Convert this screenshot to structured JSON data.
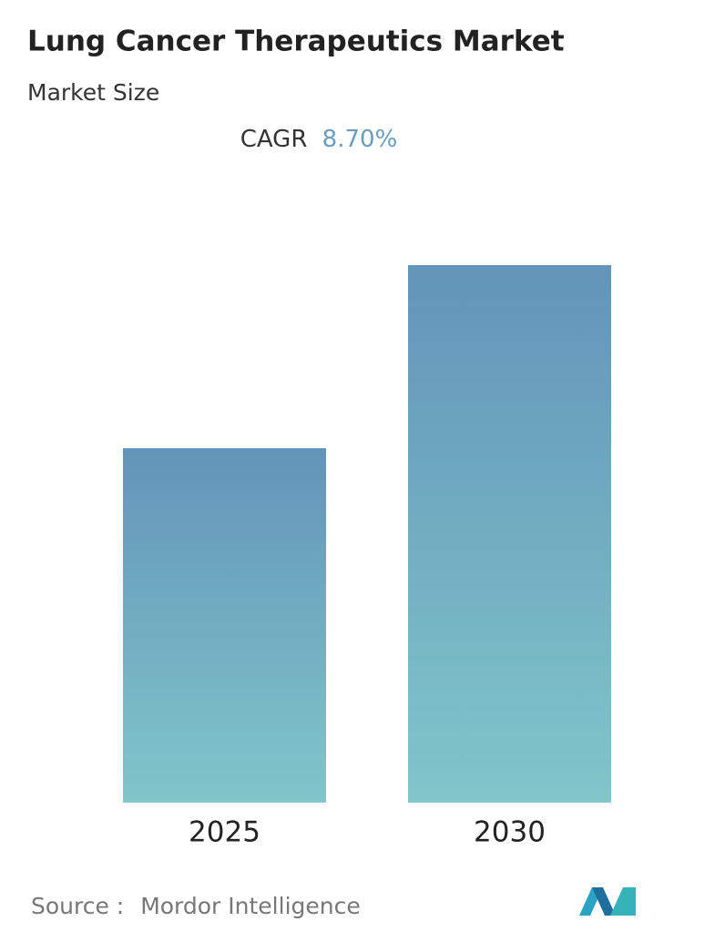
{
  "chart_data": {
    "type": "bar",
    "title": "Lung Cancer Therapeutics Market",
    "subtitle": "Market Size",
    "cagr_label": "CAGR",
    "cagr_value": "8.70%",
    "categories": [
      "2025",
      "2030"
    ],
    "values": [
      38.9,
      59.0
    ],
    "color_top": "#6394b9",
    "color_bottom": "#80c6ca",
    "source_label": "Source :",
    "source": "Mordor Intelligence"
  }
}
